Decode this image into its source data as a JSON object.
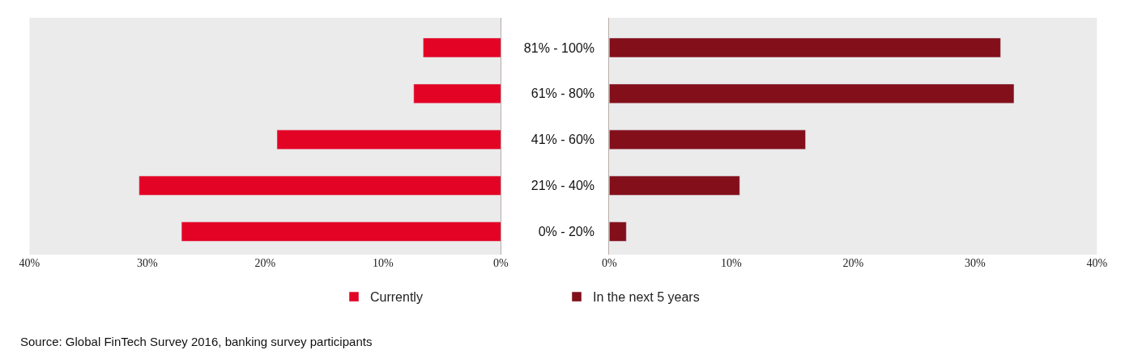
{
  "chart_data": [
    {
      "type": "bar",
      "orientation": "horizontal",
      "categories": [
        null,
        null,
        null,
        null,
        null
      ],
      "series": [
        {
          "name": "Currently",
          "color": "#e30425",
          "values": [
            6.6,
            7.4,
            19.0,
            30.7,
            27.1
          ]
        }
      ],
      "xlim": [
        40,
        0
      ],
      "xticks": [
        {
          "value": 40,
          "label": "40%"
        },
        {
          "value": 30,
          "label": "30%"
        },
        {
          "value": 20,
          "label": "20%"
        },
        {
          "value": 10,
          "label": "10%"
        },
        {
          "value": 0,
          "label": "0%"
        }
      ],
      "tick_labels": "x",
      "grid": false,
      "legend": "bottom",
      "annotations": [
        "Source: Global FinTech Survey 2016, banking survey participants"
      ]
    },
    {
      "type": "bar",
      "orientation": "horizontal",
      "categories": [
        "81% - 100%",
        "61% - 80%",
        "41% - 60%",
        "21% - 40%",
        "0% - 20%"
      ],
      "series": [
        {
          "name": "In the next 5 years",
          "color": "#830f1a",
          "values": [
            32.1,
            33.2,
            16.1,
            10.7,
            1.4
          ]
        }
      ],
      "xlim": [
        0,
        40
      ],
      "xticks": [
        {
          "value": 0,
          "label": "0%"
        },
        {
          "value": 10,
          "label": "10%"
        },
        {
          "value": 20,
          "label": "20%"
        },
        {
          "value": 30,
          "label": "30%"
        },
        {
          "value": 40,
          "label": "40%"
        }
      ],
      "grid": false,
      "legend": "bottom"
    }
  ]
}
